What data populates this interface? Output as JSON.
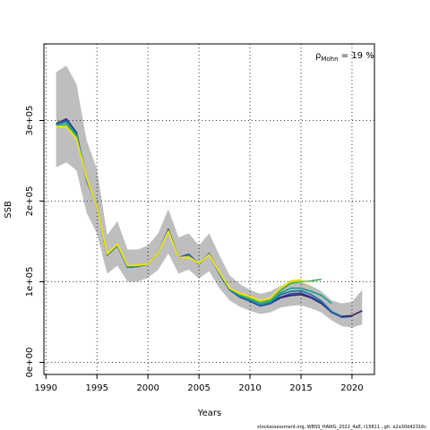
{
  "chart_data": {
    "type": "line",
    "xlabel": "Years",
    "ylabel": "SSB",
    "xlim": [
      1989.8,
      2022.2
    ],
    "ylim": [
      -15000,
      395000
    ],
    "x_ticks": [
      1990,
      1995,
      2000,
      2005,
      2010,
      2015,
      2020
    ],
    "y_ticks": [
      0,
      100000,
      200000,
      300000
    ],
    "y_tick_labels": [
      "0e+00",
      "1e+05",
      "2e+05",
      "3e+05"
    ],
    "grid": true,
    "annotation": "19 %",
    "annotation_prefix": "ρ",
    "annotation_sub": "Mohn",
    "footer": "stockassessment.org, WBSS_HAWG_2022_4aE, r15811 , git: e2a30d42316c",
    "band": {
      "x": [
        1991,
        1992,
        1993,
        1994,
        1995,
        1996,
        1997,
        1998,
        1999,
        2000,
        2001,
        2002,
        2003,
        2004,
        2005,
        2006,
        2007,
        2008,
        2009,
        2010,
        2011,
        2012,
        2013,
        2014,
        2015,
        2016,
        2017,
        2018,
        2019,
        2020,
        2021
      ],
      "upper": [
        360000,
        368000,
        345000,
        275000,
        240000,
        158000,
        175000,
        140000,
        140000,
        145000,
        160000,
        190000,
        155000,
        160000,
        145000,
        160000,
        133000,
        108000,
        97000,
        90000,
        85000,
        88000,
        95000,
        100000,
        100000,
        95000,
        88000,
        77000,
        73000,
        75000,
        90000
      ],
      "lower": [
        242000,
        248000,
        238000,
        185000,
        160000,
        110000,
        120000,
        100000,
        100000,
        105000,
        115000,
        135000,
        110000,
        115000,
        104000,
        113000,
        92000,
        77000,
        69000,
        64000,
        60000,
        62000,
        68000,
        70000,
        71000,
        67000,
        62000,
        52000,
        45000,
        43000,
        47000
      ],
      "color": "#bebebe"
    },
    "series": [
      {
        "color": "#3a1f5a",
        "x": [
          1991,
          1992,
          1993,
          1994,
          1995,
          1996,
          1997,
          1998,
          1999,
          2000,
          2001,
          2002,
          2003,
          2004,
          2005,
          2006,
          2007,
          2008,
          2009,
          2010,
          2011,
          2012,
          2013,
          2014,
          2015,
          2016,
          2017,
          2018,
          2019,
          2020,
          2021
        ],
        "y": [
          296000,
          302000,
          285000,
          225000,
          195000,
          133000,
          145000,
          118000,
          119000,
          122000,
          136000,
          165000,
          130000,
          134000,
          122000,
          135000,
          110000,
          90000,
          81000,
          76000,
          70000,
          73000,
          80000,
          83000,
          84000,
          80000,
          73000,
          62000,
          57000,
          58000,
          64000
        ]
      },
      {
        "color": "#2c3e9a",
        "x": [
          1991,
          1992,
          1993,
          1994,
          1995,
          1996,
          1997,
          1998,
          1999,
          2000,
          2001,
          2002,
          2003,
          2004,
          2005,
          2006,
          2007,
          2008,
          2009,
          2010,
          2011,
          2012,
          2013,
          2014,
          2015,
          2016,
          2017,
          2018,
          2019,
          2020
        ],
        "y": [
          296000,
          301000,
          284000,
          226000,
          195000,
          133000,
          145000,
          118000,
          119000,
          122000,
          136000,
          164000,
          130000,
          134000,
          122000,
          135000,
          110000,
          90000,
          81000,
          76000,
          70000,
          73000,
          81000,
          85000,
          86000,
          81000,
          74000,
          62000,
          56000,
          57000
        ]
      },
      {
        "color": "#1f6fa8",
        "x": [
          1991,
          1992,
          1993,
          1994,
          1995,
          1996,
          1997,
          1998,
          1999,
          2000,
          2001,
          2002,
          2003,
          2004,
          2005,
          2006,
          2007,
          2008,
          2009,
          2010,
          2011,
          2012,
          2013,
          2014,
          2015,
          2016,
          2017,
          2018,
          2019
        ],
        "y": [
          295000,
          299000,
          283000,
          226000,
          194000,
          133000,
          145000,
          118000,
          119000,
          122000,
          136000,
          164000,
          130000,
          133000,
          122000,
          134000,
          110000,
          90000,
          82000,
          77000,
          71000,
          74000,
          84000,
          88000,
          89000,
          84000,
          76000,
          63000,
          57000
        ]
      },
      {
        "color": "#1f9a8a",
        "x": [
          1991,
          1992,
          1993,
          1994,
          1995,
          1996,
          1997,
          1998,
          1999,
          2000,
          2001,
          2002,
          2003,
          2004,
          2005,
          2006,
          2007,
          2008,
          2009,
          2010,
          2011,
          2012,
          2013,
          2014,
          2015,
          2016,
          2017,
          2018
        ],
        "y": [
          294000,
          298000,
          282000,
          227000,
          194000,
          134000,
          146000,
          119000,
          120000,
          122000,
          136000,
          164000,
          130000,
          132000,
          122000,
          134000,
          111000,
          91000,
          83000,
          78000,
          72000,
          75000,
          86000,
          92000,
          92000,
          88000,
          83000,
          73000
        ]
      },
      {
        "color": "#3cae5a",
        "x": [
          1991,
          1992,
          1993,
          1994,
          1995,
          1996,
          1997,
          1998,
          1999,
          2000,
          2001,
          2002,
          2003,
          2004,
          2005,
          2006,
          2007,
          2008,
          2009,
          2010,
          2011,
          2012,
          2013,
          2014,
          2015,
          2016,
          2017
        ],
        "y": [
          293000,
          295000,
          280000,
          227000,
          194000,
          134000,
          146000,
          119000,
          120000,
          122000,
          136000,
          163000,
          130000,
          131000,
          122000,
          134000,
          111000,
          91000,
          84000,
          79000,
          74000,
          77000,
          89000,
          98000,
          100000,
          101000,
          103000
        ]
      },
      {
        "color": "#b5d12b",
        "x": [
          1991,
          1992,
          1993,
          1994,
          1995,
          1996,
          1997,
          1998,
          1999,
          2000,
          2001,
          2002,
          2003,
          2004,
          2005,
          2006,
          2007,
          2008,
          2009,
          2010,
          2011,
          2012,
          2013,
          2014,
          2015,
          2016
        ],
        "y": [
          293000,
          293000,
          278000,
          228000,
          194000,
          134000,
          146000,
          120000,
          120000,
          122000,
          136000,
          163000,
          130000,
          131000,
          123000,
          134000,
          112000,
          92000,
          85000,
          81000,
          76000,
          79000,
          92000,
          100000,
          101000,
          100000
        ]
      },
      {
        "color": "#f2e21b",
        "x": [
          1991,
          1992,
          1993,
          1994,
          1995,
          1996,
          1997,
          1998,
          1999,
          2000,
          2001,
          2002,
          2003,
          2004,
          2005,
          2006,
          2007,
          2008,
          2009,
          2010,
          2011,
          2012,
          2013,
          2014,
          2015
        ],
        "y": [
          292000,
          292000,
          277000,
          228000,
          194000,
          135000,
          147000,
          120000,
          121000,
          122000,
          136000,
          162000,
          130000,
          130000,
          123000,
          133000,
          112000,
          92000,
          86000,
          82000,
          77000,
          80000,
          93000,
          101000,
          103000
        ]
      }
    ]
  }
}
